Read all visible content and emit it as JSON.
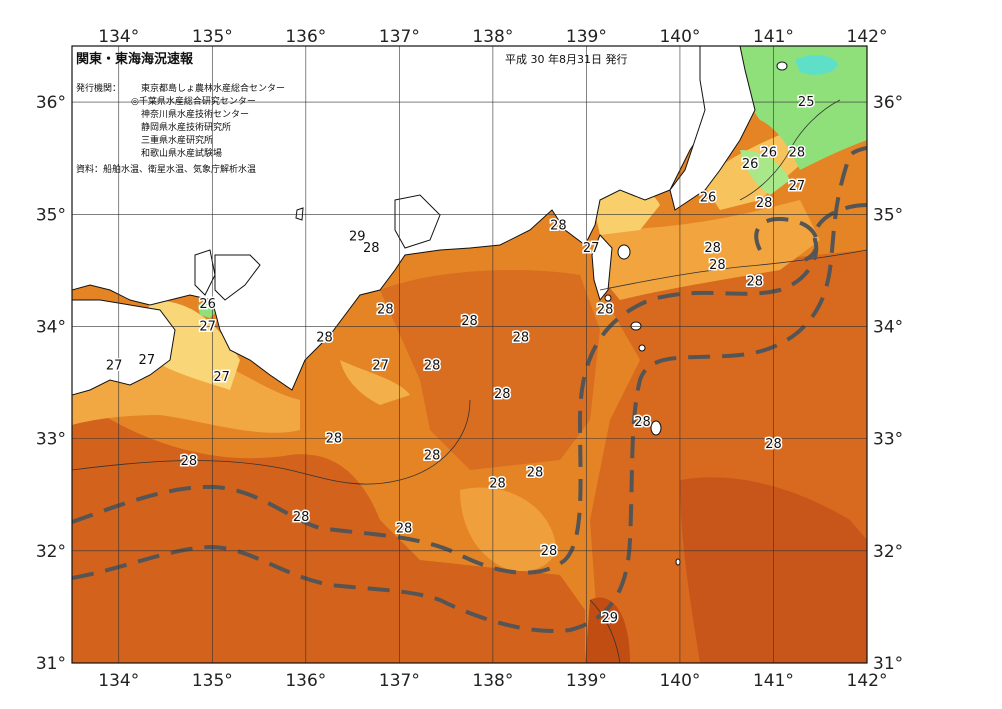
{
  "header": {
    "title": "関東・東海海況速報",
    "issue_date": "平成 30 年8月31日 発行"
  },
  "info_block": {
    "issuer_label": "発行機関：",
    "issuers": [
      "東京都島しょ農林水産総合センター",
      "◎千葉県水産総合研究センター",
      "神奈川県水産技術センター",
      "静岡県水産技術研究所",
      "三重県水産研究所",
      "和歌山県水産試験場"
    ],
    "source": "資料：船舶水温、衛星水温、気象庁解析水温"
  },
  "axes": {
    "lon_ticks": [
      "134°",
      "135°",
      "136°",
      "137°",
      "138°",
      "139°",
      "140°",
      "141°",
      "142°"
    ],
    "lat_ticks": [
      "36°",
      "35°",
      "34°",
      "33°",
      "32°",
      "31°"
    ]
  },
  "map_data": {
    "lon_range": [
      133.5,
      142
    ],
    "lat_range": [
      31,
      36.5
    ],
    "temperature_labels": [
      {
        "value": "25",
        "lon": 141.35,
        "lat": 36.0
      },
      {
        "value": "26",
        "lon": 140.95,
        "lat": 35.55
      },
      {
        "value": "26",
        "lon": 140.75,
        "lat": 35.45
      },
      {
        "value": "26",
        "lon": 140.3,
        "lat": 35.15
      },
      {
        "value": "28",
        "lon": 141.25,
        "lat": 35.55
      },
      {
        "value": "27",
        "lon": 141.25,
        "lat": 35.25
      },
      {
        "value": "28",
        "lon": 140.9,
        "lat": 35.1
      },
      {
        "value": "28",
        "lon": 138.7,
        "lat": 34.9
      },
      {
        "value": "27",
        "lon": 139.05,
        "lat": 34.7
      },
      {
        "value": "28",
        "lon": 140.35,
        "lat": 34.7
      },
      {
        "value": "28",
        "lon": 140.4,
        "lat": 34.55
      },
      {
        "value": "28",
        "lon": 140.8,
        "lat": 34.4
      },
      {
        "value": "29",
        "lon": 136.55,
        "lat": 34.8
      },
      {
        "value": "28",
        "lon": 136.7,
        "lat": 34.7
      },
      {
        "value": "26",
        "lon": 134.95,
        "lat": 34.2
      },
      {
        "value": "27",
        "lon": 134.95,
        "lat": 34.0
      },
      {
        "value": "28",
        "lon": 136.85,
        "lat": 34.15
      },
      {
        "value": "28",
        "lon": 139.2,
        "lat": 34.15
      },
      {
        "value": "28",
        "lon": 136.2,
        "lat": 33.9
      },
      {
        "value": "28",
        "lon": 137.75,
        "lat": 34.05
      },
      {
        "value": "28",
        "lon": 138.3,
        "lat": 33.9
      },
      {
        "value": "27",
        "lon": 134.3,
        "lat": 33.7
      },
      {
        "value": "27",
        "lon": 133.95,
        "lat": 33.65
      },
      {
        "value": "27",
        "lon": 135.1,
        "lat": 33.55
      },
      {
        "value": "27",
        "lon": 136.8,
        "lat": 33.65
      },
      {
        "value": "28",
        "lon": 137.35,
        "lat": 33.65
      },
      {
        "value": "28",
        "lon": 138.1,
        "lat": 33.4
      },
      {
        "value": "28",
        "lon": 139.6,
        "lat": 33.15
      },
      {
        "value": "28",
        "lon": 136.3,
        "lat": 33.0
      },
      {
        "value": "28",
        "lon": 137.35,
        "lat": 32.85
      },
      {
        "value": "28",
        "lon": 141.0,
        "lat": 32.95
      },
      {
        "value": "28",
        "lon": 134.75,
        "lat": 32.8
      },
      {
        "value": "28",
        "lon": 138.45,
        "lat": 32.7
      },
      {
        "value": "28",
        "lon": 138.05,
        "lat": 32.6
      },
      {
        "value": "28",
        "lon": 135.95,
        "lat": 32.3
      },
      {
        "value": "28",
        "lon": 137.05,
        "lat": 32.2
      },
      {
        "value": "28",
        "lon": 138.6,
        "lat": 32.0
      },
      {
        "value": "29",
        "lon": 139.25,
        "lat": 31.4
      }
    ]
  },
  "colors": {
    "sea_deep": "#d2601a",
    "sea_mid": "#e98a2a",
    "sea_light": "#f4ad45",
    "sea_pale": "#f8d070",
    "sea_warmest": "#c24d12",
    "cool_green": "#8fe07a",
    "cool_cyan": "#5ee0c8",
    "land": "#ffffff",
    "stream_line": "#555555"
  }
}
